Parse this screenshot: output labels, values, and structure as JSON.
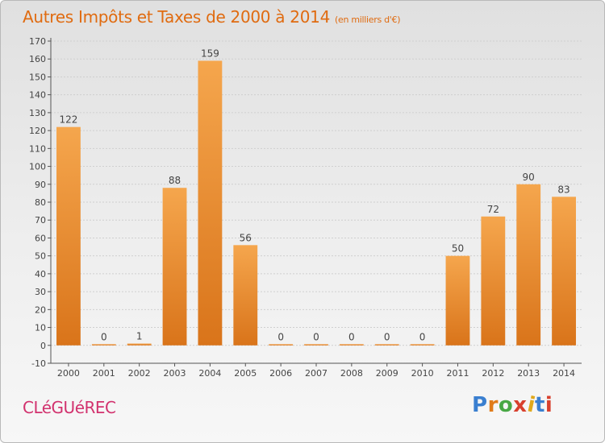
{
  "header": {
    "title": "Autres Impôts et Taxes de 2000 à 2014",
    "unit": "(en milliers d'€)"
  },
  "commune": "CLéGUéREC",
  "logo": {
    "text": "Proxiti",
    "letter_colors": [
      "#3a7fd0",
      "#e07b1a",
      "#49a845",
      "#d8402e",
      "#e0a81a",
      "#3a7fd0",
      "#d8402e"
    ]
  },
  "colors": {
    "bar_top": "#f5a64d",
    "bar_bottom": "#d9741a",
    "title": "#e06b10",
    "commune": "#d2326e"
  },
  "chart_data": {
    "type": "bar",
    "categories": [
      "2000",
      "2001",
      "2002",
      "2003",
      "2004",
      "2005",
      "2006",
      "2007",
      "2008",
      "2009",
      "2010",
      "2011",
      "2012",
      "2013",
      "2014"
    ],
    "values": [
      122,
      0,
      1,
      88,
      159,
      56,
      0,
      0,
      0,
      0,
      0,
      50,
      72,
      90,
      83
    ],
    "data_labels": [
      "122",
      "0",
      "1",
      "88",
      "159",
      "56",
      "0",
      "0",
      "0",
      "0",
      "0",
      "50",
      "72",
      "90",
      "83"
    ],
    "ylim": [
      -10,
      170
    ],
    "yticks": [
      -10,
      0,
      10,
      20,
      30,
      40,
      50,
      60,
      70,
      80,
      90,
      100,
      110,
      120,
      130,
      140,
      150,
      160,
      170
    ],
    "ytick_labels": [
      "-10",
      "0",
      "10",
      "20",
      "30",
      "40",
      "50",
      "60",
      "70",
      "80",
      "90",
      "100",
      "110",
      "120",
      "130",
      "140",
      "150",
      "160",
      "170"
    ],
    "grid": true,
    "legend": "none"
  }
}
